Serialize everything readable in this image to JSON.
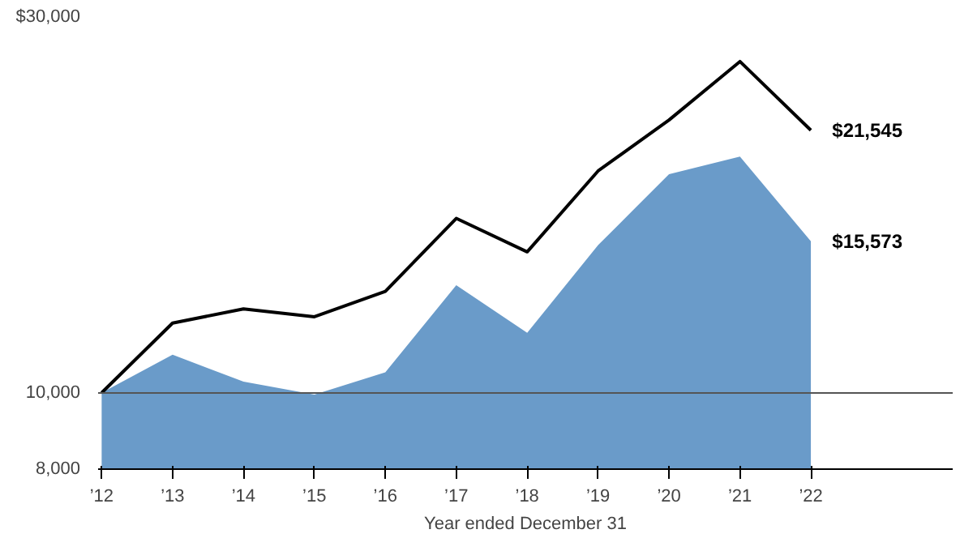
{
  "chart_data": {
    "type": "line",
    "xlabel": "Year ended December 31",
    "categories": [
      "’12",
      "’13",
      "’14",
      "’15",
      "’16",
      "’17",
      "’18",
      "’19",
      "’20",
      "’21",
      "’22"
    ],
    "series": [
      {
        "color": "#000000",
        "values": [
          10000,
          12260,
          12780,
          12490,
          13450,
          16650,
          15100,
          19130,
          22200,
          26340,
          21545
        ],
        "value_labels": [
          null,
          null,
          null,
          null,
          null,
          null,
          null,
          null,
          null,
          null,
          "$21,545"
        ]
      },
      {
        "type": "area",
        "color": "#6a9bc9",
        "values": [
          10000,
          11180,
          10330,
          9950,
          10620,
          13700,
          11920,
          15400,
          18950,
          19950,
          15573
        ],
        "value_labels": [
          null,
          null,
          null,
          null,
          null,
          null,
          null,
          null,
          null,
          null,
          "$15,573"
        ]
      }
    ],
    "log": "y",
    "ylim": [
      8000,
      30000
    ],
    "yticks": [
      {
        "value": 8000,
        "label": "8,000"
      },
      {
        "value": 10000,
        "label": "10,000"
      },
      {
        "value": 30000,
        "label": "$30,000"
      }
    ],
    "grid": "y"
  }
}
